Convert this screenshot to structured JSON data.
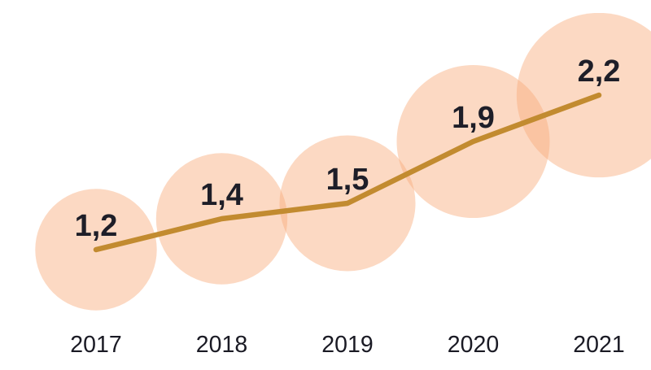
{
  "chart_data": {
    "type": "line",
    "variant": "bubble-line",
    "categories": [
      "2017",
      "2018",
      "2019",
      "2020",
      "2021"
    ],
    "series": [
      {
        "name": "value",
        "values": [
          1.2,
          1.4,
          1.5,
          1.9,
          2.2
        ],
        "labels": [
          "1,2",
          "1,4",
          "1,5",
          "1,9",
          "2,2"
        ]
      }
    ],
    "decimal_separator": ",",
    "marker": "bubble",
    "bubble_area_proportional_to_value": true,
    "grid": false,
    "legend": false,
    "axes_shown": false,
    "ylim": [
      1.0,
      2.4
    ]
  },
  "colors": {
    "background": "#FFFFFF",
    "bubble_fill": "#F8AA7B",
    "bubble_opacity": 0.45,
    "line": "#C28B30",
    "value_label_text": "#1E1E28",
    "axis_label_text": "#1A1A24"
  }
}
